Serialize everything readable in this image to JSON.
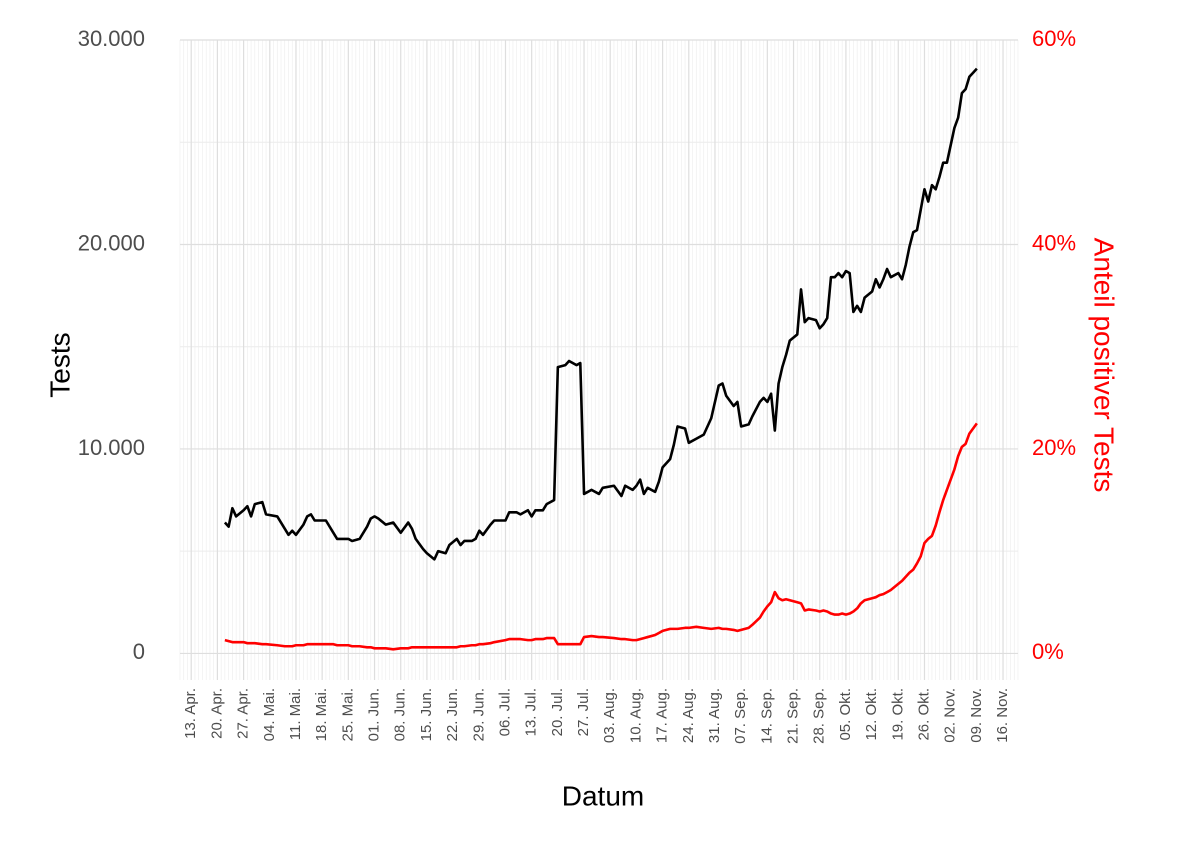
{
  "chart_data": {
    "type": "line",
    "xlabel": "Datum",
    "ylabel": "Tests",
    "y2label": "Anteil positiver Tests",
    "grid": true,
    "minor_grid": true,
    "x": [
      "22. Apr.",
      "23. Apr.",
      "24. Apr.",
      "25. Apr.",
      "27. Apr.",
      "28. Apr.",
      "29. Apr.",
      "30. Apr.",
      "02. Mai.",
      "03. Mai.",
      "06. Mai.",
      "08. Mai.",
      "09. Mai.",
      "10. Mai.",
      "11. Mai.",
      "13. Mai.",
      "14. Mai.",
      "15. Mai.",
      "16. Mai.",
      "19. Mai.",
      "21. Mai.",
      "22. Mai.",
      "25. Mai.",
      "26. Mai.",
      "28. Mai.",
      "30. Mai.",
      "31. Mai.",
      "01. Jun.",
      "02. Jun.",
      "04. Jun.",
      "06. Jun.",
      "08. Jun.",
      "10. Jun.",
      "11. Jun.",
      "12. Jun.",
      "14. Jun.",
      "15. Jun.",
      "17. Jun.",
      "18. Jun.",
      "20. Jun.",
      "21. Jun.",
      "23. Jun.",
      "24. Jun.",
      "25. Jun.",
      "27. Jun.",
      "28. Jun.",
      "29. Jun.",
      "30. Jun.",
      "02. Jul.",
      "03. Jul.",
      "06. Jul.",
      "07. Jul.",
      "09. Jul.",
      "10. Jul.",
      "12. Jul.",
      "13. Jul.",
      "14. Jul.",
      "16. Jul.",
      "17. Jul.",
      "18. Jul.",
      "19. Jul.",
      "20. Jul.",
      "22. Jul.",
      "23. Jul.",
      "25. Jul.",
      "26. Jul.",
      "27. Jul.",
      "29. Jul.",
      "31. Jul.",
      "01. Aug.",
      "04. Aug.",
      "06. Aug.",
      "07. Aug.",
      "09. Aug.",
      "10. Aug.",
      "11. Aug.",
      "12. Aug.",
      "13. Aug.",
      "15. Aug.",
      "16. Aug.",
      "17. Aug.",
      "19. Aug.",
      "20. Aug.",
      "21. Aug.",
      "23. Aug.",
      "24. Aug.",
      "26. Aug.",
      "28. Aug.",
      "30. Aug.",
      "01. Sep.",
      "02. Sep.",
      "03. Sep.",
      "05. Sep.",
      "06. Sep.",
      "07. Sep.",
      "09. Sep.",
      "10. Sep.",
      "12. Sep.",
      "13. Sep.",
      "14. Sep.",
      "15. Sep.",
      "16. Sep.",
      "17. Sep.",
      "18. Sep.",
      "19. Sep.",
      "20. Sep.",
      "22. Sep.",
      "23. Sep.",
      "24. Sep.",
      "25. Sep.",
      "27. Sep.",
      "28. Sep.",
      "29. Sep.",
      "30. Sep.",
      "01. Okt.",
      "02. Okt.",
      "03. Okt.",
      "04. Okt.",
      "05. Okt.",
      "06. Okt.",
      "07. Okt.",
      "08. Okt.",
      "09. Okt.",
      "10. Okt.",
      "12. Okt.",
      "13. Okt.",
      "14. Okt.",
      "15. Okt.",
      "16. Okt.",
      "17. Okt.",
      "19. Okt.",
      "20. Okt.",
      "21. Okt.",
      "22. Okt.",
      "23. Okt.",
      "24. Okt.",
      "25. Okt.",
      "26. Okt.",
      "27. Okt.",
      "28. Okt.",
      "29. Okt.",
      "30. Okt.",
      "31. Okt.",
      "01. Nov.",
      "03. Nov.",
      "04. Nov.",
      "05. Nov.",
      "06. Nov.",
      "07. Nov.",
      "08. Nov.",
      "09. Nov."
    ],
    "series": [
      {
        "name": "Tests",
        "color": "#000000",
        "axis": "y",
        "values": [
          6400,
          6200,
          7100,
          6700,
          7000,
          7200,
          6700,
          7300,
          7400,
          6800,
          6700,
          6100,
          5800,
          6000,
          5800,
          6300,
          6700,
          6800,
          6500,
          6500,
          5900,
          5600,
          5600,
          5500,
          5600,
          6200,
          6600,
          6700,
          6600,
          6300,
          6400,
          5900,
          6400,
          6100,
          5600,
          5100,
          4900,
          4600,
          5000,
          4900,
          5300,
          5600,
          5300,
          5500,
          5500,
          5600,
          6000,
          5800,
          6300,
          6500,
          6500,
          6900,
          6900,
          6800,
          7000,
          6700,
          7000,
          7000,
          7300,
          7400,
          7500,
          14000,
          14100,
          14300,
          14100,
          14200,
          7800,
          8000,
          7800,
          8100,
          8200,
          7700,
          8200,
          8000,
          8200,
          8500,
          7800,
          8100,
          7900,
          8400,
          9100,
          9500,
          10200,
          11100,
          11000,
          10300,
          10500,
          10700,
          11500,
          13100,
          13200,
          12600,
          12100,
          12300,
          11100,
          11200,
          11600,
          12300,
          12500,
          12300,
          12700,
          10900,
          13200,
          14000,
          14600,
          15300,
          15600,
          17800,
          16200,
          16400,
          16300,
          15900,
          16100,
          16400,
          18400,
          18400,
          18600,
          18400,
          18700,
          18600,
          16700,
          17000,
          16700,
          17400,
          17700,
          18300,
          17900,
          18300,
          18800,
          18400,
          18600,
          18300,
          19000,
          19900,
          20600,
          20700,
          21700,
          22700,
          22100,
          22900,
          22700,
          23300,
          24000,
          24000,
          25700,
          26200,
          27400,
          27600,
          28200,
          28400,
          28600
        ]
      },
      {
        "name": "Anteil positiver Tests",
        "color": "#ff0000",
        "axis": "y2",
        "values": [
          1.3,
          1.2,
          1.1,
          1.1,
          1.1,
          1.0,
          1.0,
          1.0,
          0.9,
          0.9,
          0.8,
          0.7,
          0.7,
          0.7,
          0.8,
          0.8,
          0.9,
          0.9,
          0.9,
          0.9,
          0.9,
          0.8,
          0.8,
          0.7,
          0.7,
          0.6,
          0.6,
          0.5,
          0.5,
          0.5,
          0.4,
          0.5,
          0.5,
          0.6,
          0.6,
          0.6,
          0.6,
          0.6,
          0.6,
          0.6,
          0.6,
          0.6,
          0.7,
          0.7,
          0.8,
          0.8,
          0.9,
          0.9,
          1.0,
          1.1,
          1.3,
          1.4,
          1.4,
          1.4,
          1.3,
          1.3,
          1.4,
          1.4,
          1.5,
          1.5,
          1.5,
          0.9,
          0.9,
          0.9,
          0.9,
          0.9,
          1.6,
          1.7,
          1.6,
          1.6,
          1.5,
          1.4,
          1.4,
          1.3,
          1.3,
          1.4,
          1.5,
          1.6,
          1.8,
          2.0,
          2.2,
          2.4,
          2.4,
          2.4,
          2.5,
          2.5,
          2.6,
          2.5,
          2.4,
          2.5,
          2.4,
          2.4,
          2.3,
          2.2,
          2.3,
          2.5,
          2.8,
          3.5,
          4.1,
          4.6,
          5.0,
          6.0,
          5.4,
          5.2,
          5.3,
          5.2,
          5.0,
          4.9,
          4.2,
          4.3,
          4.2,
          4.1,
          4.2,
          4.1,
          3.9,
          3.8,
          3.8,
          3.9,
          3.8,
          3.9,
          4.1,
          4.4,
          4.9,
          5.2,
          5.4,
          5.5,
          5.7,
          5.8,
          6.0,
          6.2,
          6.8,
          7.1,
          7.5,
          7.9,
          8.2,
          8.8,
          9.5,
          10.8,
          11.2,
          11.5,
          12.5,
          13.8,
          15.0,
          16.0,
          18.0,
          19.3,
          20.2,
          20.5,
          21.5,
          22.0,
          22.5
        ]
      }
    ],
    "xlim": [
      "10. Apr.",
      "20. Nov."
    ],
    "xticks": [
      "13. Apr.",
      "20. Apr.",
      "27. Apr.",
      "04. Mai.",
      "11. Mai.",
      "18. Mai.",
      "25. Mai.",
      "01. Jun.",
      "08. Jun.",
      "15. Jun.",
      "22. Jun.",
      "29. Jun.",
      "06. Jul.",
      "13. Jul.",
      "20. Jul.",
      "27. Jul.",
      "03. Aug.",
      "10. Aug.",
      "17. Aug.",
      "24. Aug.",
      "31. Aug.",
      "07. Sep.",
      "14. Sep.",
      "21. Sep.",
      "28. Sep.",
      "05. Okt.",
      "12. Okt.",
      "19. Okt.",
      "26. Okt.",
      "02. Nov.",
      "09. Nov.",
      "16. Nov."
    ],
    "ylim": [
      -1300,
      30000
    ],
    "yticks": [
      0,
      {
        "value": 10000,
        "label": "10.000"
      },
      {
        "value": 20000,
        "label": "20.000"
      },
      {
        "value": 30000,
        "label": "30.000"
      }
    ],
    "y2lim": [
      -2.6,
      60
    ],
    "y2ticks": [
      {
        "value": 0,
        "label": "0%"
      },
      {
        "value": 20,
        "label": "20%"
      },
      {
        "value": 40,
        "label": "40%"
      },
      {
        "value": 60,
        "label": "60%"
      }
    ]
  }
}
